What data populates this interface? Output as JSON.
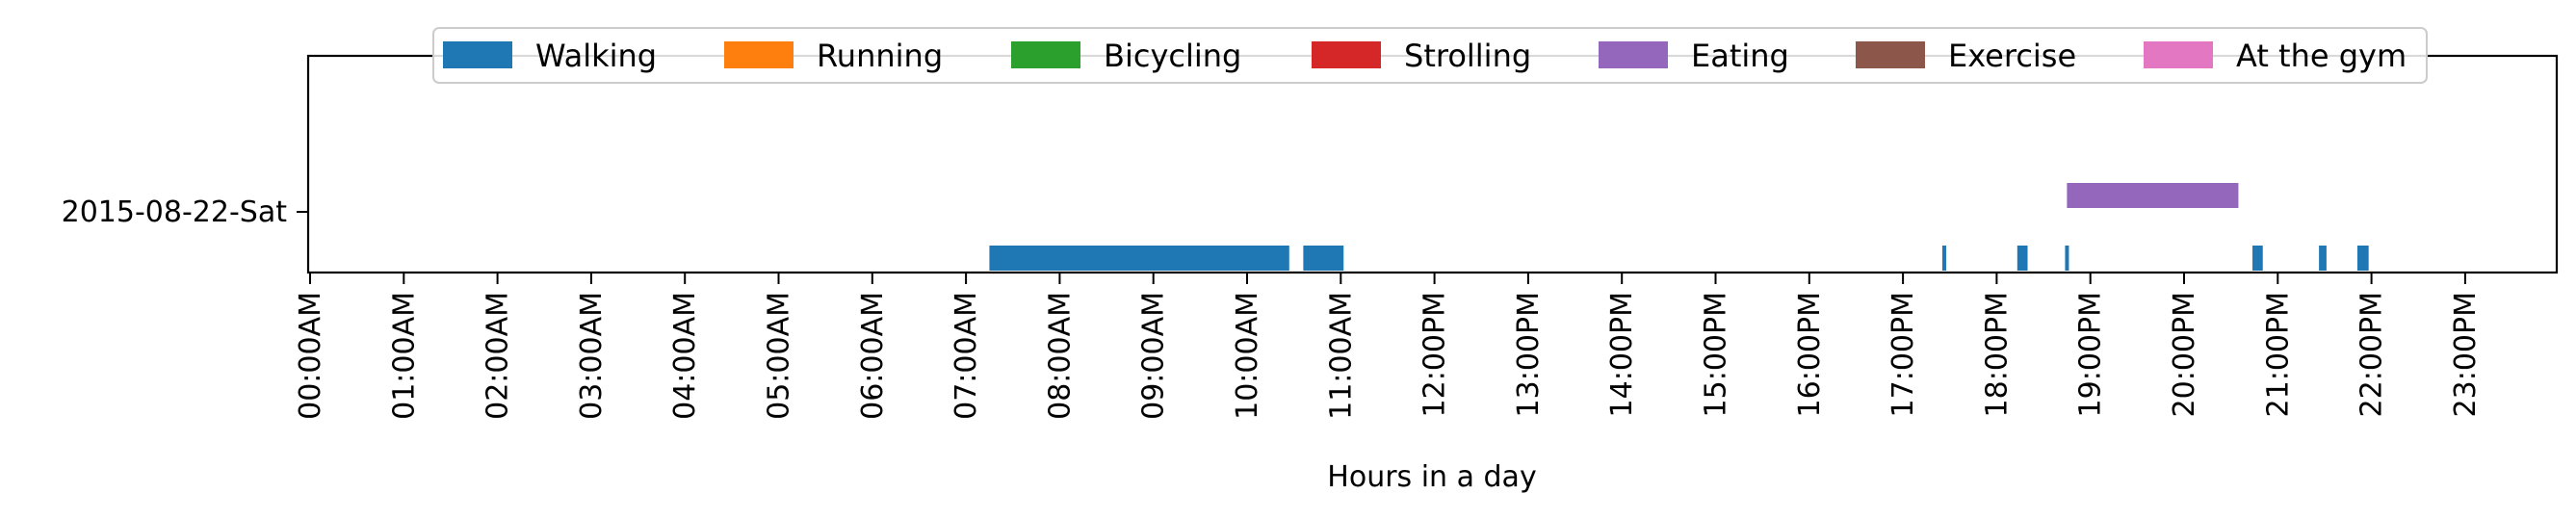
{
  "chart_data": {
    "type": "timeline",
    "xlabel": "Hours in a day",
    "ylabel": "",
    "title": "",
    "xlim": [
      0,
      24
    ],
    "x_ticks": [
      "00:00AM",
      "01:00AM",
      "02:00AM",
      "03:00AM",
      "04:00AM",
      "05:00AM",
      "06:00AM",
      "07:00AM",
      "08:00AM",
      "09:00AM",
      "10:00AM",
      "11:00AM",
      "12:00PM",
      "13:00PM",
      "14:00PM",
      "15:00PM",
      "16:00PM",
      "17:00PM",
      "18:00PM",
      "19:00PM",
      "20:00PM",
      "21:00PM",
      "22:00PM",
      "23:00PM"
    ],
    "y_categories": [
      "2015-08-22-Sat"
    ],
    "legend": {
      "placement": "top-center",
      "entries": [
        {
          "name": "Walking",
          "color": "#1f77b4"
        },
        {
          "name": "Running",
          "color": "#ff7f0e"
        },
        {
          "name": "Bicycling",
          "color": "#2ca02c"
        },
        {
          "name": "Strolling",
          "color": "#d62728"
        },
        {
          "name": "Eating",
          "color": "#9467bd"
        },
        {
          "name": "Exercise",
          "color": "#8c564b"
        },
        {
          "name": "At the gym",
          "color": "#e377c2"
        }
      ]
    },
    "series": [
      {
        "name": "Walking",
        "row": "2015-08-22-Sat",
        "lane": "lower",
        "intervals": [
          [
            7.25,
            10.45
          ],
          [
            10.6,
            11.03
          ],
          [
            17.42,
            17.46
          ],
          [
            18.22,
            18.33
          ],
          [
            18.73,
            18.77
          ],
          [
            20.73,
            20.84
          ],
          [
            21.44,
            21.52
          ],
          [
            21.85,
            21.97
          ]
        ]
      },
      {
        "name": "Eating",
        "row": "2015-08-22-Sat",
        "lane": "upper",
        "intervals": [
          [
            18.75,
            20.58
          ]
        ]
      }
    ],
    "grid": false
  }
}
